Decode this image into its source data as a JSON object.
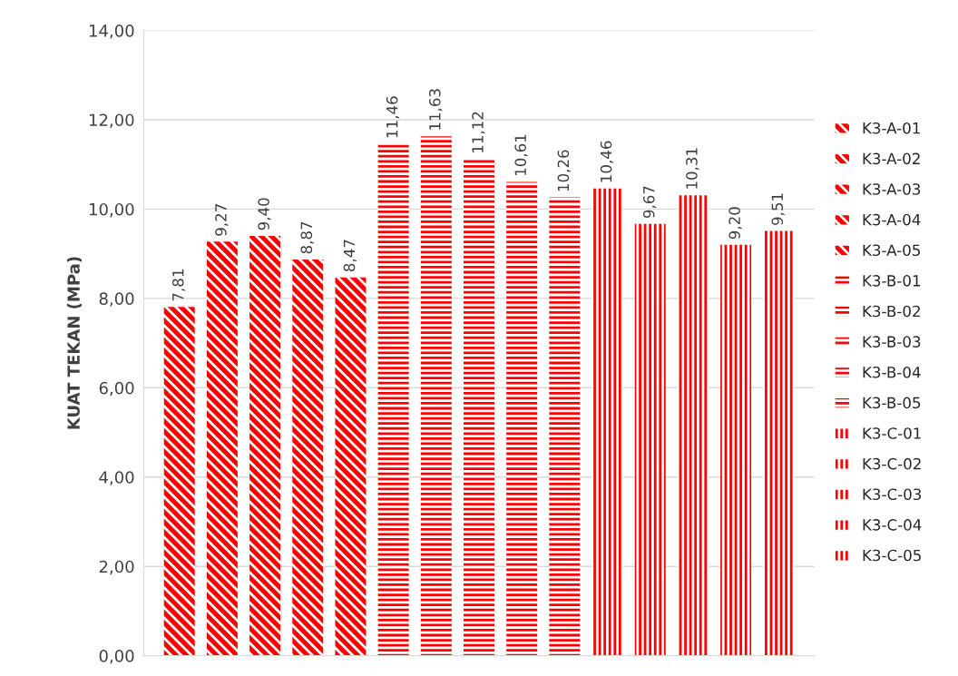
{
  "chart_data": {
    "type": "bar",
    "ylabel": "KUAT TEKAN (MPa)",
    "categories": [
      null
    ],
    "series": [
      {
        "name": "K3-A-01",
        "color": "#ff0000",
        "values": [
          7.81
        ],
        "value_labels": [
          "7,81"
        ]
      },
      {
        "name": "K3-A-02",
        "color": "#ff0000",
        "values": [
          9.27
        ],
        "value_labels": [
          "9,27"
        ]
      },
      {
        "name": "K3-A-03",
        "color": "#ff0000",
        "values": [
          9.4
        ],
        "value_labels": [
          "9,40"
        ]
      },
      {
        "name": "K3-A-04",
        "color": "#ff0000",
        "values": [
          8.87
        ],
        "value_labels": [
          "8,87"
        ]
      },
      {
        "name": "K3-A-05",
        "color": "#ff0000",
        "values": [
          8.47
        ],
        "value_labels": [
          "8,47"
        ]
      },
      {
        "name": "K3-B-01",
        "color": "#ff0000",
        "values": [
          11.46
        ],
        "value_labels": [
          "11,46"
        ]
      },
      {
        "name": "K3-B-02",
        "color": "#ff0000",
        "values": [
          11.63
        ],
        "value_labels": [
          "11,63"
        ]
      },
      {
        "name": "K3-B-03",
        "color": "#ff0000",
        "values": [
          11.12
        ],
        "value_labels": [
          "11,12"
        ]
      },
      {
        "name": "K3-B-04",
        "color": "#ff0000",
        "values": [
          10.61
        ],
        "value_labels": [
          "10,61"
        ]
      },
      {
        "name": "K3-B-05",
        "color": "#ff0000",
        "values": [
          10.26
        ],
        "value_labels": [
          "10,26"
        ]
      },
      {
        "name": "K3-C-01",
        "color": "#ff0000",
        "values": [
          10.46
        ],
        "value_labels": [
          "10,46"
        ]
      },
      {
        "name": "K3-C-02",
        "color": "#ff0000",
        "values": [
          9.67
        ],
        "value_labels": [
          "9,67"
        ]
      },
      {
        "name": "K3-C-03",
        "color": "#ff0000",
        "values": [
          10.31
        ],
        "value_labels": [
          "10,31"
        ]
      },
      {
        "name": "K3-C-04",
        "color": "#ff0000",
        "values": [
          9.2
        ],
        "value_labels": [
          "9,20"
        ]
      },
      {
        "name": "K3-C-05",
        "color": "#ff0000",
        "values": [
          9.51
        ],
        "value_labels": [
          "9,51"
        ]
      }
    ],
    "ylim": [
      0,
      14
    ],
    "yticks": [
      {
        "value": 0,
        "label": "0,00"
      },
      {
        "value": 2,
        "label": "2,00"
      },
      {
        "value": 4,
        "label": "4,00"
      },
      {
        "value": 6,
        "label": "6,00"
      },
      {
        "value": 8,
        "label": "8,00"
      },
      {
        "value": 10,
        "label": "10,00"
      },
      {
        "value": 12,
        "label": "12,00"
      },
      {
        "value": 14,
        "label": "14,00"
      }
    ],
    "grid": "y",
    "legend": "right"
  }
}
